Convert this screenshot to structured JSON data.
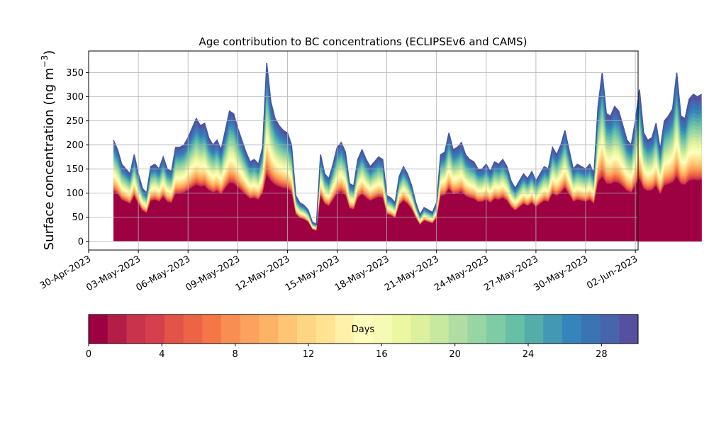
{
  "chart_data": {
    "type": "area",
    "title": "Age contribution to BC concentrations (ECLIPSEv6 and CAMS)",
    "ylabel": "Surface concentration (ng m",
    "ylabel_sup": "−3",
    "ylabel_close": ")",
    "xlabel": "",
    "ylim": [
      -18,
      395
    ],
    "yticks": [
      0,
      50,
      100,
      150,
      200,
      250,
      300,
      350
    ],
    "xticks": [
      "30-Apr-2023",
      "03-May-2023",
      "06-May-2023",
      "09-May-2023",
      "12-May-2023",
      "15-May-2023",
      "18-May-2023",
      "21-May-2023",
      "24-May-2023",
      "27-May-2023",
      "30-May-2023",
      "02-Jun-2023"
    ],
    "x_start": "2023-05-01T12:00",
    "x_step_hours": 6,
    "grid": true,
    "stacking": "cumulative by age in days (0 to 30)",
    "total": [
      210,
      190,
      160,
      150,
      140,
      180,
      140,
      110,
      100,
      155,
      160,
      150,
      175,
      150,
      145,
      195,
      195,
      200,
      215,
      235,
      255,
      240,
      245,
      215,
      200,
      210,
      190,
      230,
      270,
      265,
      235,
      210,
      185,
      165,
      170,
      160,
      195,
      370,
      290,
      255,
      240,
      230,
      225,
      200,
      95,
      80,
      75,
      65,
      40,
      35,
      180,
      140,
      130,
      160,
      195,
      205,
      185,
      120,
      115,
      170,
      190,
      170,
      155,
      165,
      175,
      170,
      95,
      90,
      80,
      135,
      155,
      140,
      115,
      80,
      55,
      70,
      65,
      60,
      80,
      180,
      185,
      225,
      190,
      195,
      205,
      180,
      170,
      165,
      150,
      150,
      160,
      145,
      165,
      160,
      170,
      155,
      125,
      110,
      125,
      140,
      130,
      145,
      125,
      140,
      155,
      150,
      195,
      180,
      200,
      230,
      190,
      150,
      160,
      155,
      150,
      160,
      140,
      280,
      350,
      265,
      260,
      280,
      270,
      240,
      210,
      200,
      250,
      315,
      225,
      210,
      215,
      245,
      190,
      250,
      260,
      275,
      350,
      260,
      255,
      295,
      305,
      300,
      305
    ],
    "colorbar": {
      "label": "Days",
      "ticks": [
        0,
        4,
        8,
        12,
        16,
        20,
        24,
        28
      ],
      "range": [
        0,
        30
      ],
      "colors": [
        "#9e0142",
        "#b41d48",
        "#c9334b",
        "#d6404e",
        "#e35348",
        "#ec6445",
        "#f57748",
        "#f98e52",
        "#fca15e",
        "#fdb366",
        "#fec574",
        "#fed683",
        "#fee492",
        "#fff1a8",
        "#fffdbc",
        "#f6fbb3",
        "#ebf7a1",
        "#dcf09e",
        "#c6e89f",
        "#afdda2",
        "#98d5a4",
        "#7fcba4",
        "#67c0a5",
        "#55adaa",
        "#4399b4",
        "#3584bb",
        "#3b74b3",
        "#4864ab",
        "#5650a1"
      ]
    }
  }
}
